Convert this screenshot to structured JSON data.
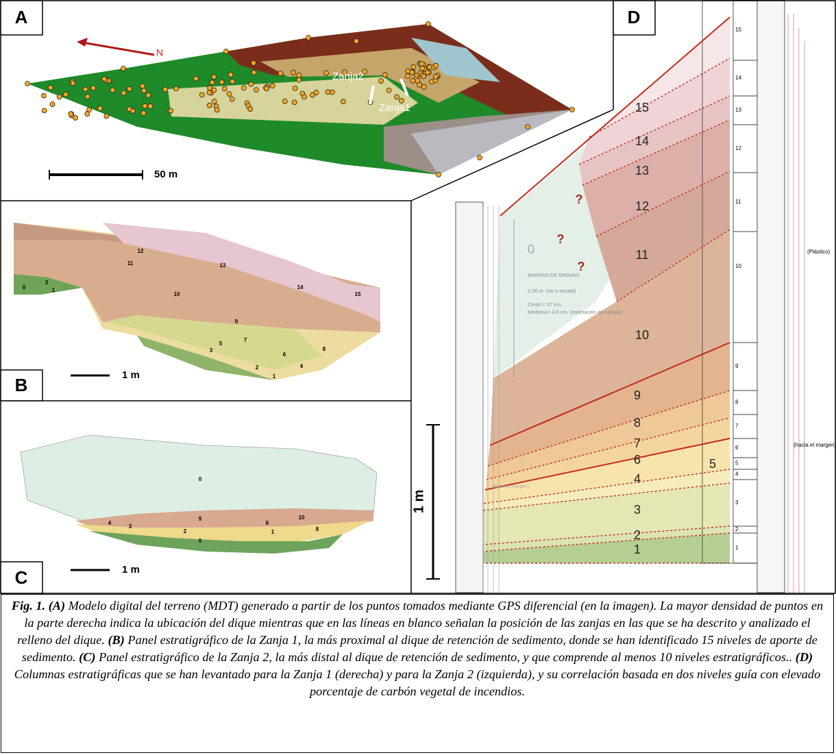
{
  "panels": {
    "a": {
      "label": "A",
      "north": "N",
      "trenches": [
        "Zanja2",
        "Zanja1"
      ],
      "scale": "50 m"
    },
    "b": {
      "label": "B",
      "scale": "1 m",
      "layers": [
        "0",
        "3",
        "1",
        "12",
        "11",
        "13",
        "10",
        "14",
        "15",
        "9",
        "7",
        "5",
        "8",
        "3",
        "6",
        "4",
        "2",
        "1"
      ]
    },
    "c": {
      "label": "C",
      "scale": "1 m",
      "layers": [
        "0",
        "10",
        "9",
        "4",
        "3",
        "6",
        "2",
        "1",
        "0",
        "8"
      ]
    },
    "d": {
      "label": "D",
      "scale": "1 m",
      "levels": [
        "15",
        "14",
        "13",
        "12",
        "11",
        "10",
        "9",
        "8",
        "7",
        "6",
        "5",
        "4",
        "3",
        "2",
        "1",
        "0"
      ],
      "unknown": [
        "?",
        "?",
        "?"
      ],
      "gravel": [
        "BARRAS DE GRAVAS",
        "2,30 m. (no a escala)",
        "Centil = 37 cm.",
        "Mediana= 4,5 cm. (estimación de campo)"
      ],
      "column_levels": [
        "15",
        "14",
        "13",
        "12",
        "11",
        "10",
        "9",
        "8",
        "7",
        "6",
        "5",
        "4",
        "3",
        "2",
        "1"
      ],
      "notes": [
        "(Plástico)",
        "(hacia el margen)",
        "(hacia el margen)"
      ]
    }
  },
  "caption": [
    {
      "text": "Fig. 1. (A)",
      "bold": true
    },
    {
      "text": " Modelo digital del terreno (MDT)  generado a partir de los puntos tomados mediante GPS diferencial (en la imagen). La mayor densidad de puntos en la parte derecha indica la ubicación del dique mientras que en las líneas en blanco señalan la posición de las zanjas en las que se ha descrito y analizado el relleno del dique. ",
      "bold": false
    },
    {
      "text": "(B)",
      "bold": true
    },
    {
      "text": " Panel estratigráfico de la Zanja 1, la más proximal al dique de retención de sedimento, donde se han identificado 15 niveles  de aporte de sedimento. ",
      "bold": false
    },
    {
      "text": "(C)",
      "bold": true
    },
    {
      "text": " Panel estratigráfico de la Zanja 2, la más distal al dique de retención de sedimento, y que comprende al menos 10 niveles estratigráficos.. ",
      "bold": false
    },
    {
      "text": "(D)",
      "bold": true
    },
    {
      "text": " Columnas estratigráficas que se han levantado para la Zanja 1 (derecha) y para la Zanja 2 (izquierda), y su correlación basada en dos niveles guía con elevado porcentaje de carbón vegetal de incendios.",
      "bold": false
    }
  ]
}
